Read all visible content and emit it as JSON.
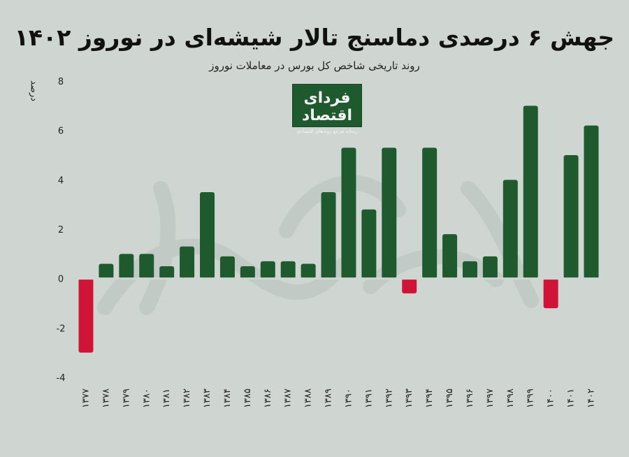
{
  "title": "جهش ۶ درصدی دماسنج تالار شیشه‌ای در نوروز ۱۴۰۲",
  "subtitle": "روند تاریخی شاخص کل بورس در معاملات نوروز",
  "logo": {
    "main": "فردای اقتصاد",
    "sub": "رسانه مرجع روندهای اقتصادی"
  },
  "colors": {
    "positive": "#1f5a2e",
    "negative": "#d01437",
    "background": "#cfd6d2"
  },
  "chart_data": {
    "type": "bar",
    "title": "جهش ۶ درصدی دماسنج تالار شیشه‌ای در نوروز ۱۴۰۲",
    "subtitle": "روند تاریخی شاخص کل بورس در معاملات نوروز",
    "ylabel": "درصد",
    "xlabel": "",
    "ylim": [
      -4,
      8
    ],
    "yticks": [
      8,
      6,
      4,
      2,
      0,
      -2,
      -4
    ],
    "ytick_labels": [
      "8",
      "6",
      "4",
      "2",
      "0",
      "-2",
      "-4"
    ],
    "grid": false,
    "categories": [
      "۱۳۷۷",
      "۱۳۷۸",
      "۱۳۷۹",
      "۱۳۸۰",
      "۱۳۸۱",
      "۱۳۸۲",
      "۱۳۸۳",
      "۱۳۸۴",
      "۱۳۸۵",
      "۱۳۸۶",
      "۱۳۸۷",
      "۱۳۸۸",
      "۱۳۸۹",
      "۱۳۹۰",
      "۱۳۹۱",
      "۱۳۹۲",
      "۱۳۹۳",
      "۱۳۹۴",
      "۱۳۹۵",
      "۱۳۹۶",
      "۱۳۹۷",
      "۱۳۹۸",
      "۱۳۹۹",
      "۱۴۰۰",
      "۱۴۰۱",
      "۱۴۰۲"
    ],
    "values": [
      -3.0,
      0.6,
      1.0,
      1.0,
      0.5,
      1.3,
      3.5,
      0.9,
      0.5,
      0.7,
      0.7,
      0.6,
      3.5,
      5.3,
      2.8,
      5.3,
      -0.6,
      5.3,
      1.8,
      0.7,
      0.9,
      4.0,
      7.0,
      -1.2,
      5.0,
      6.2
    ]
  }
}
